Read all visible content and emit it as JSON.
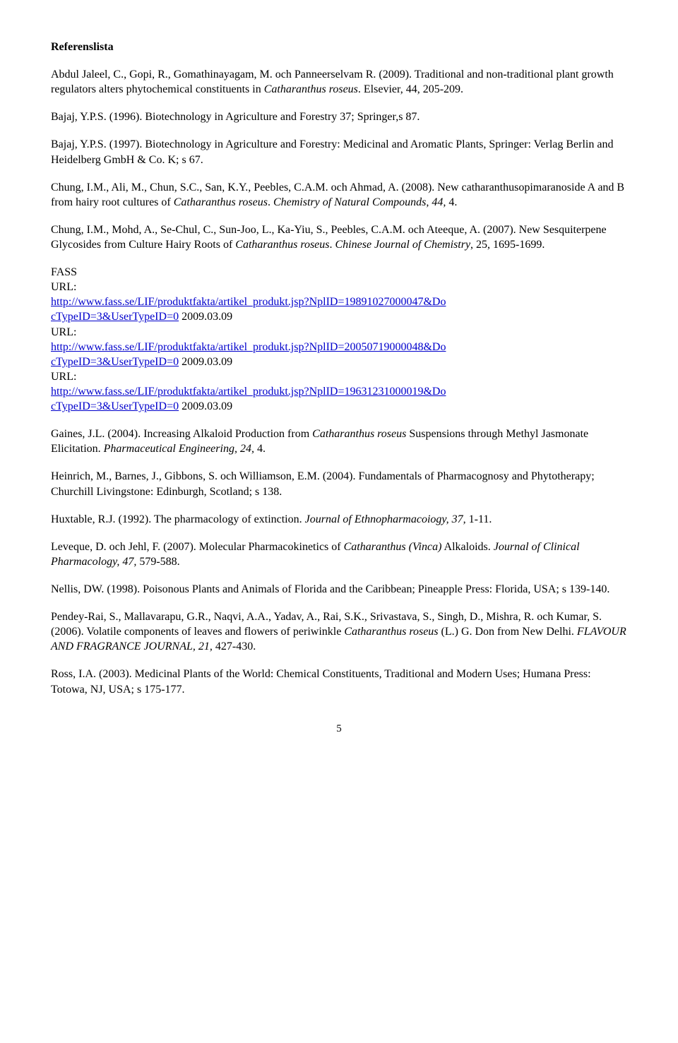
{
  "heading": "Referenslista",
  "refs": {
    "abdul": {
      "pre": "Abdul Jaleel, C., Gopi, R., Gomathinayagam, M. och Panneerselvam R. (2009). Traditional and non-traditional plant growth regulators alters phytochemical constituents in ",
      "ital": "Catharanthus roseus",
      "post": ". Elsevier, 44, 205-209."
    },
    "bajaj1996": "Bajaj, Y.P.S. (1996). Biotechnology in Agriculture and Forestry 37; Springer,s 87.",
    "bajaj1997": "Bajaj, Y.P.S. (1997). Biotechnology in Agriculture and Forestry: Medicinal and Aromatic Plants, Springer: Verlag Berlin and Heidelberg GmbH & Co. K; s 67.",
    "chung2008": {
      "pre": "Chung, I.M., Ali, M., Chun, S.C., San, K.Y., Peebles, C.A.M. och Ahmad, A. (2008). New catharanthusopimaranoside A and B from hairy root cultures of ",
      "ital1": "Catharanthus roseus",
      "mid": ". ",
      "ital2": "Chemistry of Natural Compounds, 44,",
      "post": " 4."
    },
    "chung2007": {
      "pre": "Chung, I.M., Mohd, A., Se-Chul, C., Sun-Joo, L., Ka-Yiu, S., Peebles, C.A.M. och Ateeque, A. (2007). New Sesquiterpene Glycosides from Culture Hairy Roots of ",
      "ital1": "Catharanthus roseus",
      "mid": ". ",
      "ital2": "Chinese Journal of Chemistry",
      "post": ", 25, 1695-1699."
    },
    "fass": {
      "title": "FASS",
      "url_label": "URL:",
      "link1a": "http://www.fass.se/LIF/produktfakta/artikel_produkt.jsp?NplID=19891027000047&Do",
      "link1b": "cTypeID=3&UserTypeID=0",
      "date1": " 2009.03.09",
      "link2a": "http://www.fass.se/LIF/produktfakta/artikel_produkt.jsp?NplID=20050719000048&Do",
      "link2b": "cTypeID=3&UserTypeID=0",
      "date2": "  2009.03.09",
      "link3a": "http://www.fass.se/LIF/produktfakta/artikel_produkt.jsp?NplID=19631231000019&Do",
      "link3b": "cTypeID=3&UserTypeID=0",
      "date3": " 2009.03.09"
    },
    "gaines": {
      "pre": "Gaines, J.L. (2004). Increasing Alkaloid Production from ",
      "ital1": "Catharanthus roseus",
      "mid": " Suspensions through Methyl Jasmonate Elicitation. ",
      "ital2": "Pharmaceutical Engineering, 24,",
      "post": " 4."
    },
    "heinrich": "Heinrich, M.,  Barnes, J., Gibbons, S. och Williamson, E.M.  (2004). Fundamentals of Pharmacognosy and Phytotherapy; Churchill Livingstone: Edinburgh, Scotland; s 138.",
    "huxtable": {
      "pre": "Huxtable, R.J. (1992). The pharmacology of extinction. ",
      "ital": "Journal of Ethnopharmacoiogy, 37,",
      "post": " 1-11."
    },
    "leveque": {
      "pre": "Leveque, D. och Jehl, F. (2007). Molecular Pharmacokinetics of ",
      "ital1": "Catharanthus (Vinca)",
      "mid": " Alkaloids. ",
      "ital2": "Journal of Clinical Pharmacology, 47,",
      "post": " 579-588."
    },
    "nellis": "Nellis, DW. (1998). Poisonous Plants and Animals of Florida and the Caribbean; Pineapple Press: Florida, USA; s 139-140.",
    "pendey": {
      "pre": "Pendey-Rai, S., Mallavarapu, G.R., Naqvi, A.A., Yadav, A., Rai, S.K., Srivastava, S., Singh, D., Mishra, R. och Kumar, S. (2006). Volatile components of leaves and flowers of periwinkle ",
      "ital1": "Catharanthus roseus",
      "mid": " (L.) G. Don from New Delhi. ",
      "ital2": "FLAVOUR AND FRAGRANCE JOURNAL, 21,",
      "post": " 427-430."
    },
    "ross": "Ross, I.A. (2003). Medicinal Plants of the World: Chemical Constituents, Traditional and Modern Uses; Humana Press: Totowa, NJ, USA; s 175-177."
  },
  "pagenum": "5"
}
